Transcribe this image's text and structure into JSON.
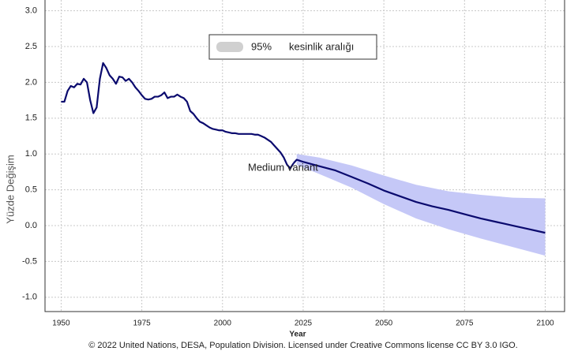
{
  "chart_data": {
    "type": "line",
    "x_label": "Year",
    "y_label": "Yüzde Değişim",
    "footer": "© 2022 United Nations, DESA, Population Division. Licensed under Creative Commons license CC BY 3.0 IGO.",
    "annotation": "Medium variant",
    "xlim": [
      1945,
      2106
    ],
    "ylim": [
      -1.2,
      3.15
    ],
    "xticks": [
      1950,
      1975,
      2000,
      2025,
      2050,
      2075,
      2100
    ],
    "yticks": [
      {
        "value": 3,
        "label": "3.0"
      },
      2.5,
      {
        "value": 2,
        "label": "2.0"
      },
      1.5,
      {
        "value": 1,
        "label": "1.0"
      },
      0.5,
      {
        "value": 0,
        "label": "0.0"
      },
      -0.5,
      {
        "value": -1,
        "label": "-1.0"
      }
    ],
    "grid": true,
    "band": {
      "label": "95%",
      "name": "kesinlik aralığı",
      "color": "#c5c8f7",
      "x": [
        2023,
        2030,
        2040,
        2050,
        2060,
        2070,
        2080,
        2090,
        2100
      ],
      "lower": [
        0.85,
        0.72,
        0.53,
        0.3,
        0.1,
        -0.05,
        -0.18,
        -0.3,
        -0.42
      ],
      "upper": [
        1.0,
        0.95,
        0.84,
        0.7,
        0.57,
        0.48,
        0.43,
        0.39,
        0.38
      ]
    },
    "series": [
      {
        "color": "#0a0a6e",
        "x": [
          1950,
          1951,
          1952,
          1953,
          1954,
          1955,
          1956,
          1957,
          1958,
          1959,
          1960,
          1961,
          1962,
          1963,
          1964,
          1965,
          1966,
          1967,
          1968,
          1969,
          1970,
          1971,
          1972,
          1973,
          1974,
          1975,
          1976,
          1977,
          1978,
          1979,
          1980,
          1981,
          1982,
          1983,
          1984,
          1985,
          1986,
          1987,
          1988,
          1989,
          1990,
          1991,
          1992,
          1993,
          1994,
          1995,
          1996,
          1997,
          1998,
          1999,
          2000,
          2001,
          2002,
          2003,
          2004,
          2005,
          2006,
          2007,
          2008,
          2009,
          2010,
          2011,
          2012,
          2013,
          2014,
          2015,
          2016,
          2017,
          2018,
          2019,
          2020,
          2021,
          2022
        ],
        "values": [
          1.73,
          1.73,
          1.88,
          1.95,
          1.93,
          1.98,
          1.97,
          2.05,
          2.0,
          1.75,
          1.57,
          1.65,
          2.05,
          2.27,
          2.2,
          2.1,
          2.05,
          1.98,
          2.08,
          2.07,
          2.02,
          2.05,
          2.0,
          1.93,
          1.88,
          1.82,
          1.77,
          1.76,
          1.77,
          1.8,
          1.8,
          1.82,
          1.86,
          1.78,
          1.8,
          1.8,
          1.83,
          1.8,
          1.78,
          1.73,
          1.6,
          1.56,
          1.5,
          1.45,
          1.43,
          1.4,
          1.37,
          1.35,
          1.34,
          1.33,
          1.33,
          1.31,
          1.3,
          1.29,
          1.29,
          1.28,
          1.28,
          1.28,
          1.28,
          1.28,
          1.27,
          1.27,
          1.25,
          1.23,
          1.2,
          1.17,
          1.12,
          1.07,
          1.02,
          0.95,
          0.85,
          0.8,
          0.87
        ]
      },
      {
        "color": "#0a0a6e",
        "x": [
          2022,
          2023,
          2025,
          2030,
          2035,
          2040,
          2045,
          2050,
          2055,
          2060,
          2065,
          2070,
          2075,
          2080,
          2085,
          2090,
          2095,
          2100
        ],
        "values": [
          0.87,
          0.92,
          0.89,
          0.83,
          0.77,
          0.68,
          0.59,
          0.49,
          0.41,
          0.33,
          0.27,
          0.22,
          0.16,
          0.1,
          0.05,
          0.0,
          -0.05,
          -0.1
        ]
      }
    ]
  }
}
